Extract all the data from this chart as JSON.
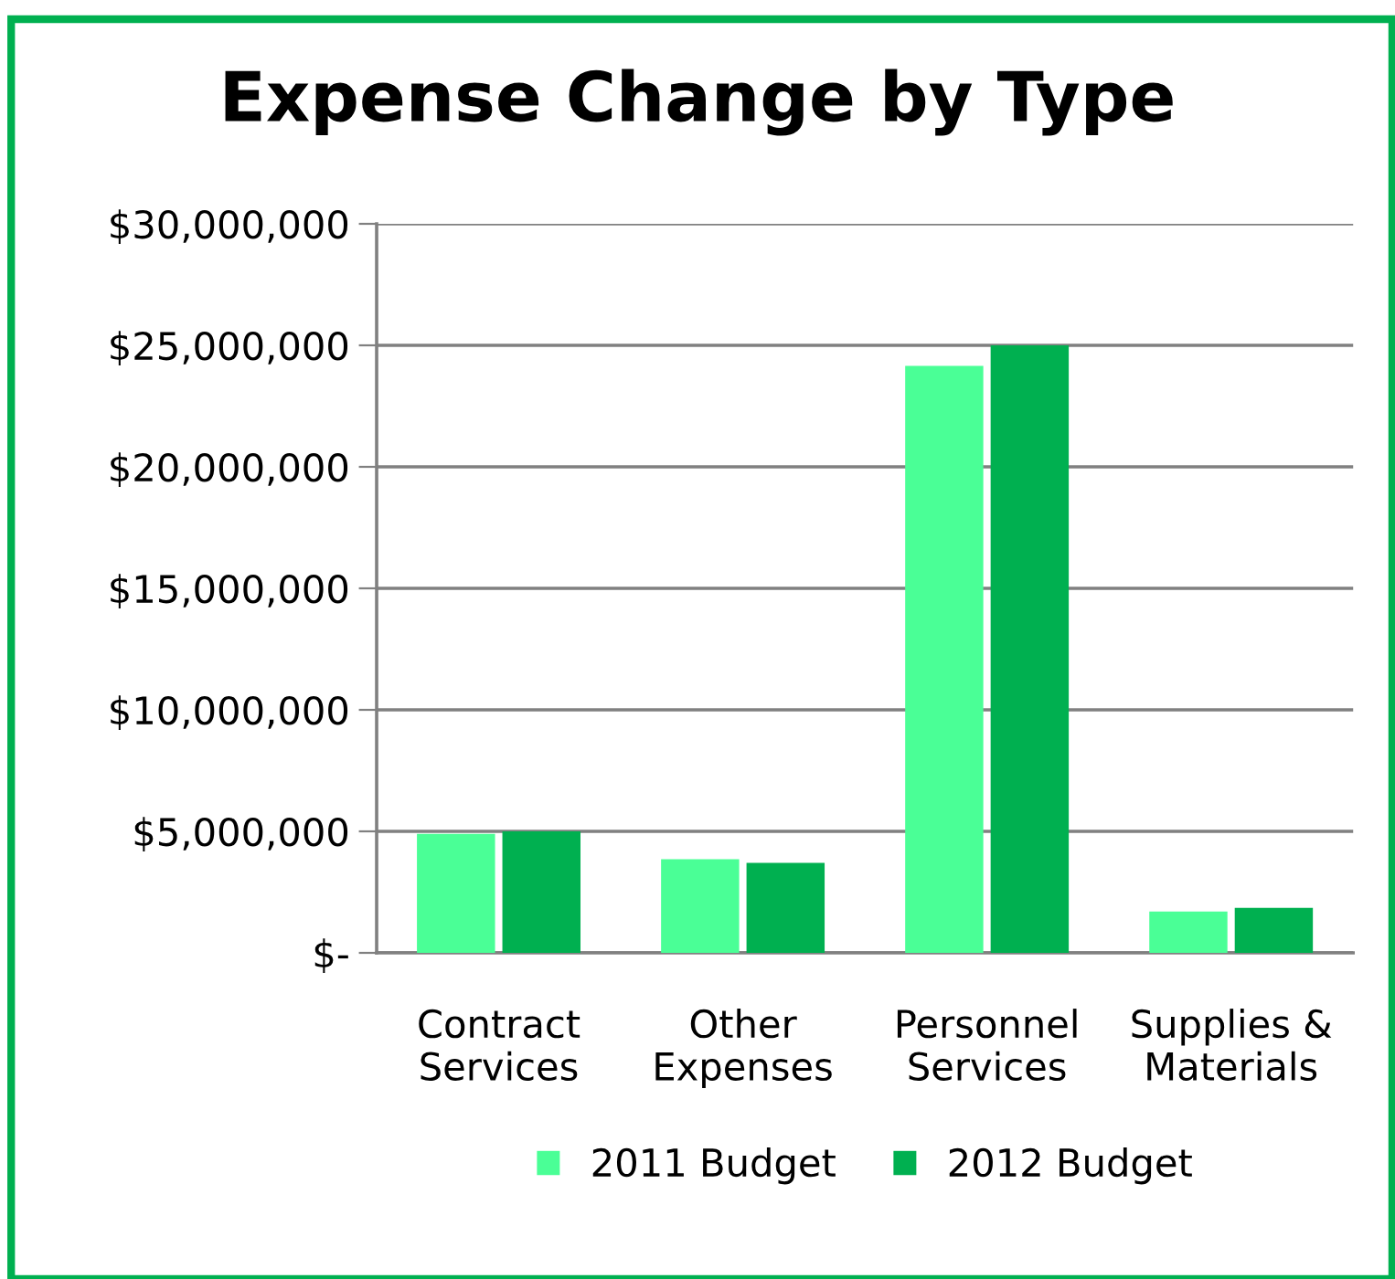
{
  "chart_data": {
    "type": "bar",
    "title": "Expense Change by Type",
    "categories": [
      "Contract\nServices",
      "Other\nExpenses",
      "Personnel\nServices",
      "Supplies &\nMaterials"
    ],
    "series": [
      {
        "name": "2011 Budget",
        "color": "#4aff96",
        "values": [
          4900000,
          3850000,
          24150000,
          1700000
        ]
      },
      {
        "name": "2012 Budget",
        "color": "#00b050",
        "values": [
          5000000,
          3700000,
          25000000,
          1850000
        ]
      }
    ],
    "ylim": [
      0,
      30000000
    ],
    "yticks": [
      {
        "value": 0,
        "label": "$-"
      },
      {
        "value": 5000000,
        "label": "$5,000,000"
      },
      {
        "value": 10000000,
        "label": "$10,000,000"
      },
      {
        "value": 15000000,
        "label": "$15,000,000"
      },
      {
        "value": 20000000,
        "label": "$20,000,000"
      },
      {
        "value": 25000000,
        "label": "$25,000,000"
      },
      {
        "value": 30000000,
        "label": "$30,000,000"
      }
    ],
    "grid": "y",
    "legend": "bottom"
  }
}
